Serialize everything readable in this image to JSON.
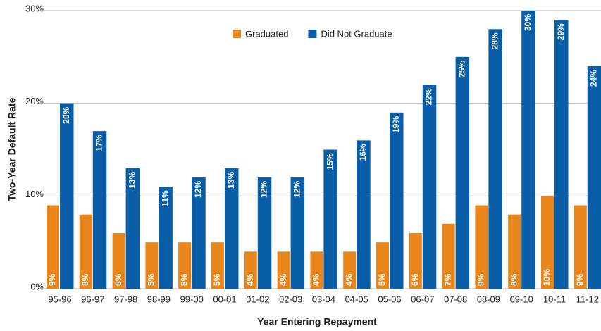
{
  "chart_data": {
    "type": "bar",
    "y_label": "Two-Year Default Rate",
    "x_label": "Year Entering Repayment",
    "categories": [
      "95-96",
      "96-97",
      "97-98",
      "98-99",
      "99-00",
      "00-01",
      "01-02",
      "02-03",
      "03-04",
      "04-05",
      "05-06",
      "06-07",
      "07-08",
      "08-09",
      "09-10",
      "10-11",
      "11-12"
    ],
    "series": [
      {
        "name": "Graduated",
        "color": "#e8861c",
        "values": [
          9,
          8,
          6,
          5,
          5,
          5,
          4,
          4,
          4,
          4,
          5,
          6,
          7,
          9,
          8,
          10,
          9
        ],
        "value_labels": [
          "9%",
          "8%",
          "6%",
          "5%",
          "5%",
          "5%",
          "4%",
          "4%",
          "4%",
          "4%",
          "5%",
          "6%",
          "7%",
          "9%",
          "8%",
          "10%",
          "9%"
        ]
      },
      {
        "name": "Did Not Graduate",
        "color": "#0a5ea8",
        "values": [
          20,
          17,
          13,
          11,
          12,
          13,
          12,
          12,
          15,
          16,
          19,
          22,
          25,
          28,
          30,
          29,
          24
        ],
        "value_labels": [
          "20%",
          "17%",
          "13%",
          "11%",
          "12%",
          "13%",
          "12%",
          "12%",
          "15%",
          "16%",
          "19%",
          "22%",
          "25%",
          "28%",
          "30%",
          "29%",
          "24%"
        ]
      }
    ],
    "ylim": [
      0,
      30
    ],
    "yticks": [
      {
        "value": 0,
        "label": "0%"
      },
      {
        "value": 10,
        "label": "10%"
      },
      {
        "value": 20,
        "label": "20%"
      },
      {
        "value": 30,
        "label": "30%"
      }
    ],
    "grid": true,
    "legend": "top"
  }
}
